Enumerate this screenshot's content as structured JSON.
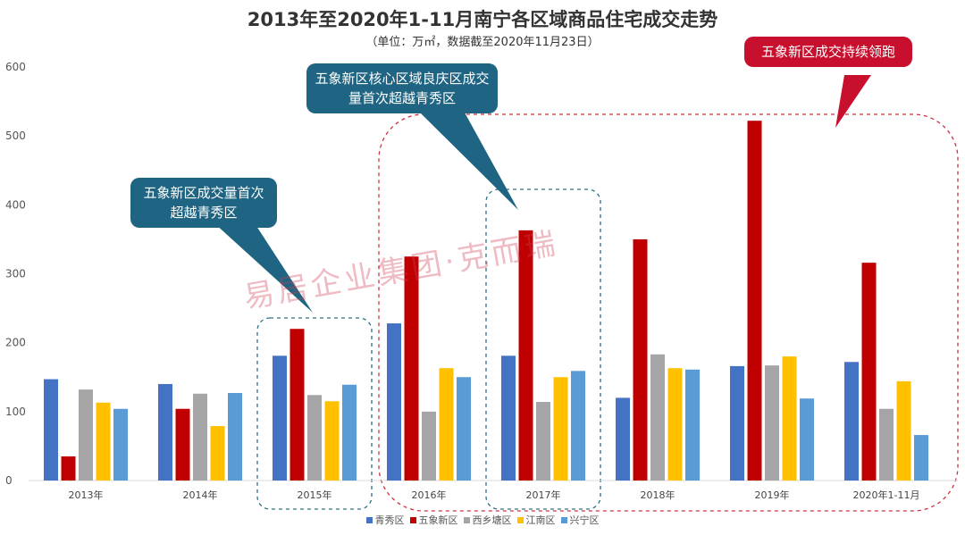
{
  "chart_data": {
    "type": "bar",
    "title": "2013年至2020年1-11月南宁各区域商品住宅成交走势",
    "subtitle": "（单位：万㎡，数据截至2020年11月23日）",
    "categories": [
      "2013年",
      "2014年",
      "2015年",
      "2016年",
      "2017年",
      "2018年",
      "2019年",
      "2020年1-11月"
    ],
    "ylim": [
      0,
      600
    ],
    "yticks": [
      0,
      100,
      200,
      300,
      400,
      500,
      600
    ],
    "grid": false,
    "legend_position": "bottom",
    "series": [
      {
        "name": "青秀区",
        "color": "#4472c4",
        "values": [
          147,
          140,
          181,
          228,
          181,
          120,
          166,
          172
        ]
      },
      {
        "name": "五象新区",
        "color": "#c00000",
        "values": [
          35,
          104,
          220,
          325,
          363,
          350,
          522,
          316
        ]
      },
      {
        "name": "西乡塘区",
        "color": "#a5a5a5",
        "values": [
          132,
          126,
          124,
          100,
          114,
          183,
          167,
          104
        ]
      },
      {
        "name": "江南区",
        "color": "#ffc000",
        "values": [
          113,
          79,
          115,
          163,
          150,
          163,
          180,
          144
        ]
      },
      {
        "name": "兴宁区",
        "color": "#5b9bd5",
        "values": [
          104,
          127,
          139,
          150,
          159,
          161,
          119,
          66
        ]
      }
    ],
    "annotations": [
      "五象新区成交量首次超越青秀区",
      "五象新区核心区域良庆区成交量首次超越青秀区",
      "五象新区成交持续领跑"
    ]
  },
  "watermark": "易居企业集团·克而瑞"
}
